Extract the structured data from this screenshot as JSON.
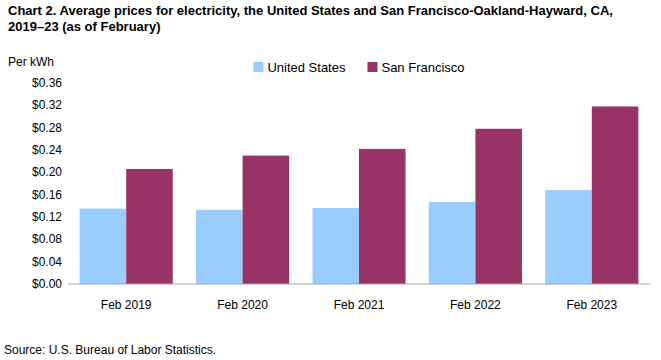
{
  "chart_data": {
    "type": "bar",
    "title": "Chart 2. Average prices for electricity, the United States and San Francisco-Oakland-Hayward, CA, 2019–23 (as of February)",
    "y_label": "Per kWh",
    "source": "Source: U.S. Bureau of Labor Statistics.",
    "categories": [
      "Feb 2019",
      "Feb 2020",
      "Feb 2021",
      "Feb 2022",
      "Feb 2023"
    ],
    "series": [
      {
        "name": "United States",
        "color": "#99ccff",
        "values": [
          0.135,
          0.133,
          0.136,
          0.147,
          0.168
        ]
      },
      {
        "name": "San Francisco",
        "color": "#993366",
        "values": [
          0.206,
          0.23,
          0.242,
          0.278,
          0.318
        ]
      }
    ],
    "ylim": [
      0,
      0.36
    ],
    "yticks": [
      {
        "value": 0,
        "label": "$0.00"
      },
      {
        "value": 0.04,
        "label": "$0.04"
      },
      {
        "value": 0.08,
        "label": "$0.08"
      },
      {
        "value": 0.12,
        "label": "$0.12"
      },
      {
        "value": 0.16,
        "label": "$0.16"
      },
      {
        "value": 0.2,
        "label": "$0.20"
      },
      {
        "value": 0.24,
        "label": "$0.24"
      },
      {
        "value": 0.28,
        "label": "$0.28"
      },
      {
        "value": 0.32,
        "label": "$0.32"
      },
      {
        "value": 0.36,
        "label": "$0.36"
      }
    ],
    "grid": false,
    "legend": "top"
  }
}
